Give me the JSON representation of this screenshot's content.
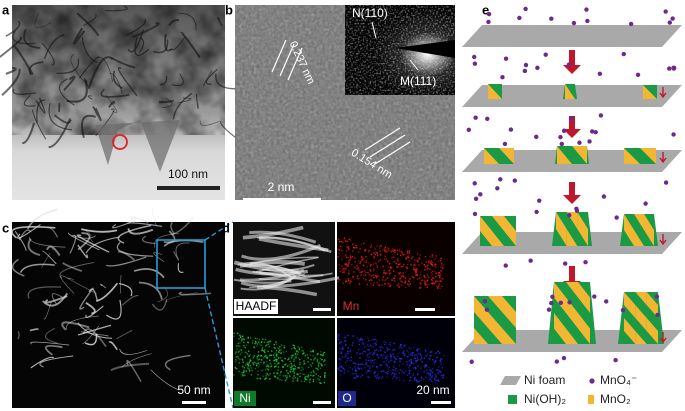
{
  "panels": {
    "a": {
      "label": "a",
      "scale_bar": "100 nm"
    },
    "b": {
      "label": "b",
      "scale_bar": "2 nm",
      "d_spacing_1": "0.237 nm",
      "d_spacing_2": "0.154 nm",
      "diffraction_1": "N(110)",
      "diffraction_2": "M(111)"
    },
    "c": {
      "label": "c",
      "scale_bar": "50 nm"
    },
    "d": {
      "label": "d",
      "scale_bar": "20 nm",
      "maps": [
        "HAADF",
        "Mn",
        "Ni",
        "O"
      ]
    },
    "e": {
      "label": "e",
      "legend": [
        "Ni foam",
        "MnO₄⁻",
        "Ni(OH)₂",
        "MnO₂"
      ]
    }
  }
}
